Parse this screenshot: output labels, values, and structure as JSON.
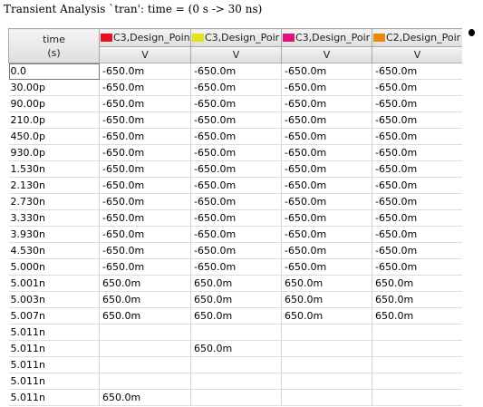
{
  "window": {
    "title": "Transient Analysis `tran': time = (0 s -> 30 ns)"
  },
  "table": {
    "time_header": {
      "line1": "time",
      "line2": "(s)"
    },
    "columns": [
      {
        "label": "C3,Design_Poin",
        "color": "#e8101c",
        "unit": "V"
      },
      {
        "label": "C3,Design_Poir",
        "color": "#e6e21a",
        "unit": "V"
      },
      {
        "label": "C3,Design_Poir",
        "color": "#e0127a",
        "unit": "V"
      },
      {
        "label": "C2,Design_Poir",
        "color": "#e88a0e",
        "unit": "V"
      }
    ],
    "rows": [
      {
        "time": "0.0",
        "values": [
          "-650.0m",
          "-650.0m",
          "-650.0m",
          "-650.0m"
        ]
      },
      {
        "time": "30.00p",
        "values": [
          "-650.0m",
          "-650.0m",
          "-650.0m",
          "-650.0m"
        ]
      },
      {
        "time": "90.00p",
        "values": [
          "-650.0m",
          "-650.0m",
          "-650.0m",
          "-650.0m"
        ]
      },
      {
        "time": "210.0p",
        "values": [
          "-650.0m",
          "-650.0m",
          "-650.0m",
          "-650.0m"
        ]
      },
      {
        "time": "450.0p",
        "values": [
          "-650.0m",
          "-650.0m",
          "-650.0m",
          "-650.0m"
        ]
      },
      {
        "time": "930.0p",
        "values": [
          "-650.0m",
          "-650.0m",
          "-650.0m",
          "-650.0m"
        ]
      },
      {
        "time": "1.530n",
        "values": [
          "-650.0m",
          "-650.0m",
          "-650.0m",
          "-650.0m"
        ]
      },
      {
        "time": "2.130n",
        "values": [
          "-650.0m",
          "-650.0m",
          "-650.0m",
          "-650.0m"
        ]
      },
      {
        "time": "2.730n",
        "values": [
          "-650.0m",
          "-650.0m",
          "-650.0m",
          "-650.0m"
        ]
      },
      {
        "time": "3.330n",
        "values": [
          "-650.0m",
          "-650.0m",
          "-650.0m",
          "-650.0m"
        ]
      },
      {
        "time": "3.930n",
        "values": [
          "-650.0m",
          "-650.0m",
          "-650.0m",
          "-650.0m"
        ]
      },
      {
        "time": "4.530n",
        "values": [
          "-650.0m",
          "-650.0m",
          "-650.0m",
          "-650.0m"
        ]
      },
      {
        "time": "5.000n",
        "values": [
          "-650.0m",
          "-650.0m",
          "-650.0m",
          "-650.0m"
        ]
      },
      {
        "time": "5.001n",
        "values": [
          "650.0m",
          "650.0m",
          "650.0m",
          "650.0m"
        ]
      },
      {
        "time": "5.003n",
        "values": [
          "650.0m",
          "650.0m",
          "650.0m",
          "650.0m"
        ]
      },
      {
        "time": "5.007n",
        "values": [
          "650.0m",
          "650.0m",
          "650.0m",
          "650.0m"
        ]
      },
      {
        "time": "5.011n",
        "values": [
          "",
          "",
          "",
          ""
        ]
      },
      {
        "time": "5.011n",
        "values": [
          "",
          "650.0m",
          "",
          ""
        ]
      },
      {
        "time": "5.011n",
        "values": [
          "",
          "",
          "",
          ""
        ]
      },
      {
        "time": "5.011n",
        "values": [
          "",
          "",
          "",
          ""
        ]
      },
      {
        "time": "5.011n",
        "values": [
          "650.0m",
          "",
          "",
          ""
        ]
      }
    ]
  }
}
